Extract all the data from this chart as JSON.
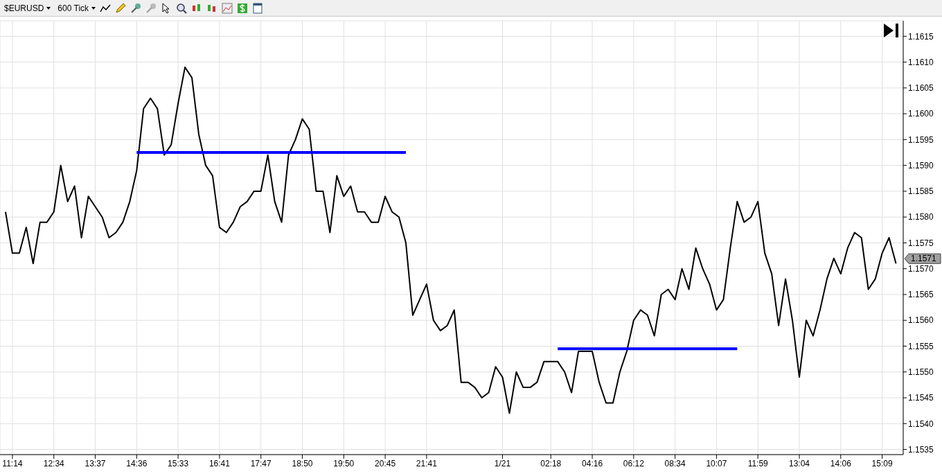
{
  "chart_data": {
    "type": "line",
    "title": "$EURUSD",
    "subtitle": "600 Tick",
    "categories": [
      null,
      "11:14",
      null,
      null,
      null,
      null,
      null,
      "12:34",
      null,
      null,
      null,
      null,
      null,
      "13:37",
      null,
      null,
      null,
      null,
      null,
      "14:36",
      null,
      null,
      null,
      null,
      null,
      "15:33",
      null,
      null,
      null,
      null,
      null,
      "16:41",
      null,
      null,
      null,
      null,
      null,
      "17:47",
      null,
      null,
      null,
      null,
      null,
      "18:50",
      null,
      null,
      null,
      null,
      null,
      "19:50",
      null,
      null,
      null,
      null,
      null,
      "20:45",
      null,
      null,
      null,
      null,
      null,
      "21:41",
      null,
      null,
      null,
      null,
      null,
      null,
      null,
      null,
      null,
      null,
      "1/21",
      null,
      null,
      null,
      null,
      null,
      null,
      "02:18",
      null,
      null,
      null,
      null,
      null,
      "04:16",
      null,
      null,
      null,
      null,
      null,
      "06:12",
      null,
      null,
      null,
      null,
      null,
      "08:34",
      null,
      null,
      null,
      null,
      null,
      "10:07",
      null,
      null,
      null,
      null,
      null,
      "11:59",
      null,
      null,
      null,
      null,
      null,
      "13:04",
      null,
      null,
      null,
      null,
      null,
      "14:06",
      null,
      null,
      null,
      null,
      null,
      "15:09",
      null,
      null
    ],
    "series": [
      {
        "color": "#000000",
        "values": [
          1.1581,
          1.1573,
          1.1573,
          1.1578,
          1.1571,
          1.1579,
          1.1579,
          1.1581,
          1.159,
          1.1583,
          1.1586,
          1.1576,
          1.1584,
          1.1582,
          1.158,
          1.1576,
          1.1577,
          1.1579,
          1.1583,
          1.1589,
          1.1601,
          1.1603,
          1.1601,
          1.1592,
          1.1594,
          1.1602,
          1.1609,
          1.1607,
          1.1596,
          1.159,
          1.1588,
          1.1578,
          1.1577,
          1.1579,
          1.1582,
          1.1583,
          1.1585,
          1.1585,
          1.1592,
          1.1583,
          1.1579,
          1.1592,
          1.1595,
          1.1599,
          1.1597,
          1.1585,
          1.1585,
          1.1577,
          1.1588,
          1.1584,
          1.1586,
          1.1581,
          1.1581,
          1.1579,
          1.1579,
          1.1584,
          1.1581,
          1.158,
          1.1575,
          1.1561,
          1.1564,
          1.1567,
          1.156,
          1.1558,
          1.1559,
          1.1562,
          1.1548,
          1.1548,
          1.1547,
          1.1545,
          1.1546,
          1.1551,
          1.1549,
          1.1542,
          1.155,
          1.1547,
          1.1547,
          1.1548,
          1.1552,
          1.1552,
          1.1552,
          1.155,
          1.1546,
          1.1554,
          1.1554,
          1.1554,
          1.1548,
          1.1544,
          1.1544,
          1.155,
          1.1554,
          1.156,
          1.1562,
          1.1561,
          1.1557,
          1.1565,
          1.1566,
          1.1564,
          1.157,
          1.1566,
          1.1574,
          1.157,
          1.1567,
          1.1562,
          1.1564,
          1.1574,
          1.1583,
          1.1579,
          1.158,
          1.1583,
          1.1573,
          1.1569,
          1.1559,
          1.1568,
          1.156,
          1.1549,
          1.156,
          1.1557,
          1.1562,
          1.1568,
          1.1572,
          1.1569,
          1.1574,
          1.1577,
          1.1576,
          1.1566,
          1.1568,
          1.1573,
          1.1576,
          1.1571
        ]
      },
      {
        "color": "#0000ff",
        "values": [
          null,
          null,
          null,
          null,
          null,
          null,
          null,
          null,
          null,
          null,
          null,
          null,
          null,
          null,
          null,
          null,
          null,
          null,
          null,
          1.15925,
          1.15925,
          1.15925,
          1.15925,
          1.15925,
          1.15925,
          1.15925,
          1.15925,
          1.15925,
          1.15925,
          1.15925,
          1.15925,
          1.15925,
          1.15925,
          1.15925,
          1.15925,
          1.15925,
          1.15925,
          1.15925,
          1.15925,
          1.15925,
          1.15925,
          1.15925,
          1.15925,
          1.15925,
          1.15925,
          1.15925,
          1.15925,
          1.15925,
          1.15925,
          1.15925,
          1.15925,
          1.15925,
          1.15925,
          1.15925,
          1.15925,
          1.15925,
          1.15925,
          1.15925,
          1.15925,
          null,
          null,
          null,
          null,
          null,
          null,
          null,
          null,
          null,
          null,
          null,
          null,
          null,
          null,
          null,
          null,
          null,
          null,
          null,
          null,
          null,
          null,
          null,
          null,
          null,
          null,
          null,
          null,
          null,
          null,
          null,
          null,
          null,
          null,
          null,
          null,
          null,
          null,
          null,
          null,
          null,
          null,
          null,
          null,
          null,
          null,
          null,
          null,
          null,
          null,
          null,
          null,
          null,
          null,
          null,
          null,
          null,
          null,
          null,
          null,
          null,
          null,
          null,
          null,
          null,
          null,
          null,
          null,
          null,
          null,
          null
        ]
      },
      {
        "color": "#0000ff",
        "values": [
          null,
          null,
          null,
          null,
          null,
          null,
          null,
          null,
          null,
          null,
          null,
          null,
          null,
          null,
          null,
          null,
          null,
          null,
          null,
          null,
          null,
          null,
          null,
          null,
          null,
          null,
          null,
          null,
          null,
          null,
          null,
          null,
          null,
          null,
          null,
          null,
          null,
          null,
          null,
          null,
          null,
          null,
          null,
          null,
          null,
          null,
          null,
          null,
          null,
          null,
          null,
          null,
          null,
          null,
          null,
          null,
          null,
          null,
          null,
          null,
          null,
          null,
          null,
          null,
          null,
          null,
          null,
          null,
          null,
          null,
          null,
          null,
          null,
          null,
          null,
          null,
          null,
          null,
          null,
          null,
          1.15545,
          1.15545,
          1.15545,
          1.15545,
          1.15545,
          1.15545,
          1.15545,
          1.15545,
          1.15545,
          1.15545,
          1.15545,
          1.15545,
          1.15545,
          1.15545,
          1.15545,
          1.15545,
          1.15545,
          1.15545,
          1.15545,
          1.15545,
          1.15545,
          1.15545,
          1.15545,
          1.15545,
          1.15545,
          1.15545,
          1.15545,
          null,
          null,
          null,
          null,
          null,
          null,
          null,
          null,
          null,
          null,
          null,
          null,
          null,
          null,
          null,
          null,
          null,
          null,
          null,
          null,
          null,
          null,
          null
        ]
      }
    ],
    "ylim": [
      1.1534,
      1.1618
    ],
    "yticks": [
      {
        "value": 1.1535,
        "label": "1.1535"
      },
      {
        "value": 1.154,
        "label": "1.1540"
      },
      {
        "value": 1.1545,
        "label": "1.1545"
      },
      {
        "value": 1.155,
        "label": "1.1550"
      },
      {
        "value": 1.1555,
        "label": "1.1555"
      },
      {
        "value": 1.156,
        "label": "1.1560"
      },
      {
        "value": 1.1565,
        "label": "1.1565"
      },
      {
        "value": 1.157,
        "label": "1.1570"
      },
      {
        "value": 1.1575,
        "label": "1.1575"
      },
      {
        "value": 1.158,
        "label": "1.1580"
      },
      {
        "value": 1.1585,
        "label": "1.1585"
      },
      {
        "value": 1.159,
        "label": "1.1590"
      },
      {
        "value": 1.1595,
        "label": "1.1595"
      },
      {
        "value": 1.16,
        "label": "1.1600"
      },
      {
        "value": 1.1605,
        "label": "1.1605"
      },
      {
        "value": 1.161,
        "label": "1.1610"
      },
      {
        "value": 1.1615,
        "label": "1.1615"
      }
    ],
    "grid": true,
    "annotations": [
      "1.1571"
    ]
  }
}
